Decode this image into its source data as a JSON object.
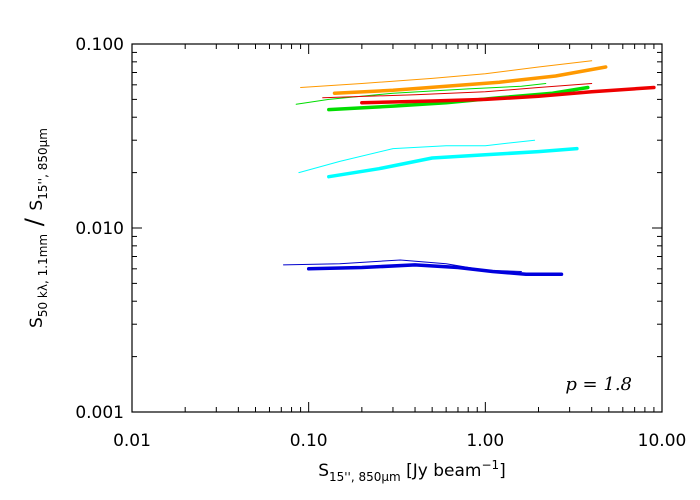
{
  "chart_data": {
    "type": "line",
    "xscale": "log",
    "yscale": "log",
    "xlim": [
      0.01,
      10.0
    ],
    "ylim": [
      0.001,
      0.1
    ],
    "grid": false,
    "xticks": [
      {
        "value": 0.01,
        "label": "0.01"
      },
      {
        "value": 0.1,
        "label": "0.10"
      },
      {
        "value": 1.0,
        "label": "1.00"
      },
      {
        "value": 10.0,
        "label": "10.00"
      }
    ],
    "yticks": [
      {
        "value": 0.001,
        "label": "0.001"
      },
      {
        "value": 0.01,
        "label": "0.010"
      },
      {
        "value": 0.1,
        "label": "0.100"
      }
    ],
    "xlabel": {
      "main": "S",
      "sub": "15'', 850μm",
      "rest": " [Jy beam",
      "sup": "−1",
      "close": "]"
    },
    "ylabel": {
      "part1": "S",
      "sub1": "50 kλ, 1.1mm",
      "slash": " / ",
      "part2": "S",
      "sub2": "15'', 850μm"
    },
    "annotation": "p = 1.8",
    "series": [
      {
        "color": "#ff9900",
        "width": 1,
        "x": [
          0.09,
          0.2,
          0.5,
          1.0,
          2.0,
          4.0
        ],
        "y": [
          0.058,
          0.061,
          0.065,
          0.069,
          0.075,
          0.081
        ]
      },
      {
        "color": "#ff9900",
        "width": 3.5,
        "x": [
          0.14,
          0.3,
          0.6,
          1.2,
          2.5,
          4.8
        ],
        "y": [
          0.054,
          0.056,
          0.059,
          0.062,
          0.067,
          0.075
        ]
      },
      {
        "color": "#00dd00",
        "width": 1,
        "x": [
          0.085,
          0.13,
          0.3,
          0.8,
          1.6,
          2.2
        ],
        "y": [
          0.047,
          0.05,
          0.054,
          0.057,
          0.059,
          0.061
        ]
      },
      {
        "color": "#dd0000",
        "width": 1,
        "x": [
          0.12,
          0.4,
          1.0,
          2.0,
          4.0
        ],
        "y": [
          0.051,
          0.053,
          0.055,
          0.058,
          0.061
        ]
      },
      {
        "color": "#00dd00",
        "width": 3.5,
        "x": [
          0.13,
          0.3,
          0.6,
          1.2,
          2.4,
          3.8
        ],
        "y": [
          0.044,
          0.046,
          0.048,
          0.051,
          0.054,
          0.058
        ]
      },
      {
        "color": "#ee0000",
        "width": 3.5,
        "x": [
          0.2,
          0.5,
          1.0,
          2.0,
          4.0,
          9.0
        ],
        "y": [
          0.048,
          0.049,
          0.05,
          0.052,
          0.055,
          0.058
        ]
      },
      {
        "color": "#00ffff",
        "width": 1,
        "x": [
          0.088,
          0.15,
          0.3,
          0.6,
          1.0,
          1.9
        ],
        "y": [
          0.02,
          0.023,
          0.027,
          0.028,
          0.028,
          0.03
        ]
      },
      {
        "color": "#00ffff",
        "width": 3.5,
        "x": [
          0.13,
          0.25,
          0.5,
          1.0,
          2.0,
          3.3
        ],
        "y": [
          0.019,
          0.021,
          0.024,
          0.025,
          0.026,
          0.027
        ]
      },
      {
        "color": "#0000cc",
        "width": 1,
        "x": [
          0.072,
          0.15,
          0.33,
          0.6,
          1.0,
          1.6
        ],
        "y": [
          0.0063,
          0.0064,
          0.0067,
          0.0064,
          0.0059,
          0.0058
        ]
      },
      {
        "color": "#0000dd",
        "width": 3.5,
        "x": [
          0.1,
          0.2,
          0.4,
          0.7,
          1.1,
          1.7,
          2.7
        ],
        "y": [
          0.006,
          0.0061,
          0.0063,
          0.0061,
          0.0058,
          0.0056,
          0.0056
        ]
      }
    ]
  }
}
